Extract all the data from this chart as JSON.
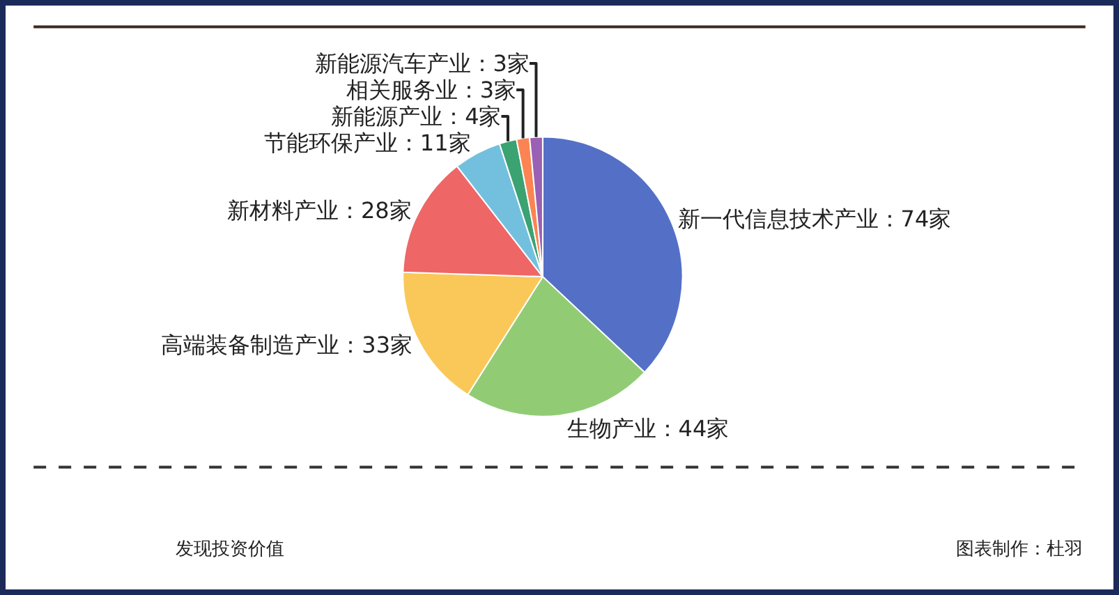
{
  "chart_data": {
    "type": "pie",
    "categories": [
      "新一代信息技术产业",
      "生物产业",
      "高端装备制造产业",
      "新材料产业",
      "节能环保产业",
      "新能源产业",
      "相关服务业",
      "新能源汽车产业"
    ],
    "values": [
      74,
      44,
      33,
      28,
      11,
      4,
      3,
      3
    ],
    "value_labels": [
      "74家",
      "44家",
      "33家",
      "28家",
      "11家",
      "4家",
      "3家",
      "3家"
    ],
    "colors": [
      "#5470c6",
      "#91cc75",
      "#fac858",
      "#ee6666",
      "#73c0de",
      "#3ba272",
      "#fc8452",
      "#9a60b4"
    ],
    "annotations": [
      "发现投资价值",
      "图表制作：杜羽"
    ],
    "legend": false
  }
}
